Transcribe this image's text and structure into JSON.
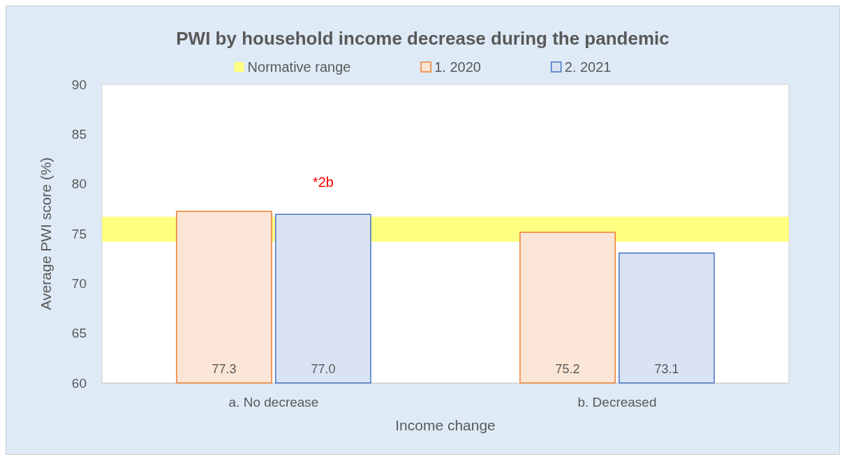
{
  "chart_data": {
    "type": "bar",
    "title": "PWI by household income decrease during the pandemic",
    "xlabel": "Income change",
    "ylabel": "Average PWI score (%)",
    "categories": [
      "a. No decrease",
      "b. Decreased"
    ],
    "series": [
      {
        "name": "1. 2020",
        "color": "#fbe5d6",
        "values": [
          77.3,
          75.2
        ],
        "value_labels": [
          "77.3",
          "75.2"
        ]
      },
      {
        "name": "2. 2021",
        "color": "#dae3f3",
        "values": [
          77.0,
          73.1
        ],
        "value_labels": [
          "77.0",
          "73.1"
        ]
      }
    ],
    "bands": [
      {
        "axis": "y",
        "from": 74.2,
        "to": 76.7,
        "label": "Normative range",
        "color": "#ffff80"
      }
    ],
    "annotations": [
      "*2b"
    ],
    "ylim": [
      60,
      90
    ],
    "yticks": [
      60,
      65,
      70,
      75,
      80,
      85,
      90
    ],
    "grid": false,
    "legend": "top"
  }
}
